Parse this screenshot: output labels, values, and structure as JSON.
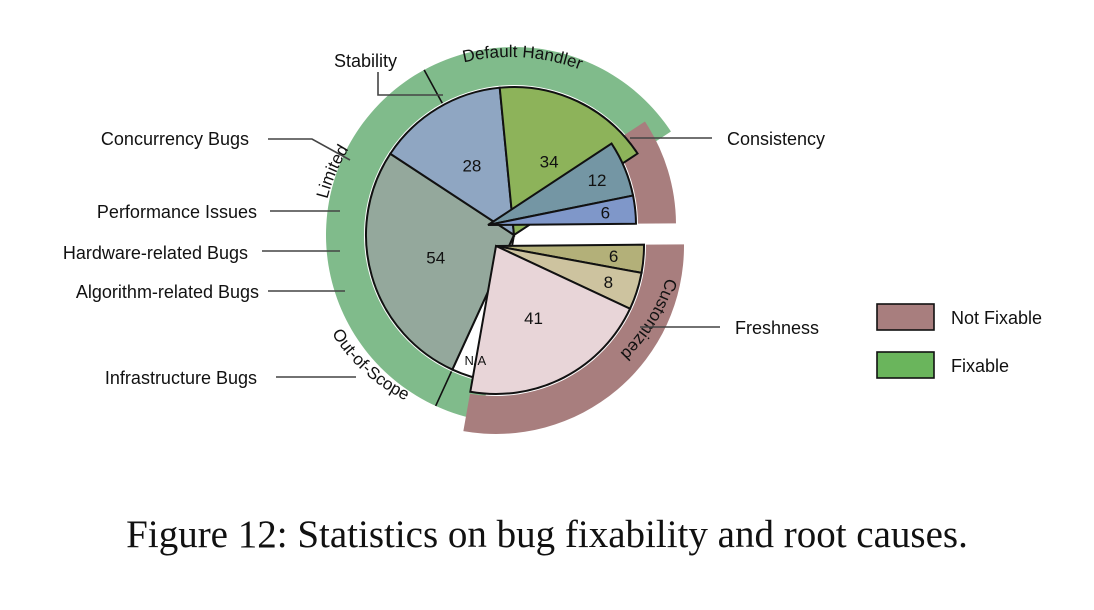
{
  "caption": "Figure 12: Statistics on bug fixability and root causes.",
  "chart_data": {
    "type": "pie",
    "slices": [
      {
        "key": "n_a",
        "label": "N/A",
        "value": 8,
        "color": "#ffffff",
        "group": "fixable"
      },
      {
        "key": "freshness",
        "label": "Freshness",
        "value": 54,
        "color": "#94a89c",
        "group": "fixable"
      },
      {
        "key": "consistency",
        "label": "Consistency",
        "value": 28,
        "color": "#8fa6c2",
        "group": "fixable"
      },
      {
        "key": "stability",
        "label": "Stability",
        "value": 34,
        "color": "#8db35a",
        "group": "fixable"
      },
      {
        "key": "concurrency",
        "label": "Concurrency Bugs",
        "value": 12,
        "color": "#7496a4",
        "group": "limited"
      },
      {
        "key": "performance",
        "label": "Performance Issues",
        "value": 6,
        "color": "#7f97c9",
        "group": "limited"
      },
      {
        "key": "hardware",
        "label": "Hardware-related Bugs",
        "value": 6,
        "color": "#b3b079",
        "group": "outofscope"
      },
      {
        "key": "algorithm",
        "label": "Algorithm-related Bugs",
        "value": 8,
        "color": "#cdc39f",
        "group": "outofscope"
      },
      {
        "key": "infrastructure",
        "label": "Infrastructure Bugs",
        "value": 41,
        "color": "#e8d5d8",
        "group": "outofscope"
      }
    ],
    "groups": [
      {
        "key": "fixable",
        "color": "#80bb8b"
      },
      {
        "key": "limited",
        "color": "#a87e7e"
      },
      {
        "key": "outofscope",
        "color": "#a87e7e"
      }
    ],
    "ring_labels": [
      {
        "key": "default_handler",
        "text": "Default Handler"
      },
      {
        "key": "customized",
        "text": "Customized"
      },
      {
        "key": "limited",
        "text": "Limited"
      },
      {
        "key": "out_of_scope",
        "text": "Out-of-Scope"
      }
    ],
    "legend": [
      {
        "label": "Not Fixable",
        "color": "#a87e7e"
      },
      {
        "label": "Fixable",
        "color": "#6ab55c"
      }
    ]
  }
}
